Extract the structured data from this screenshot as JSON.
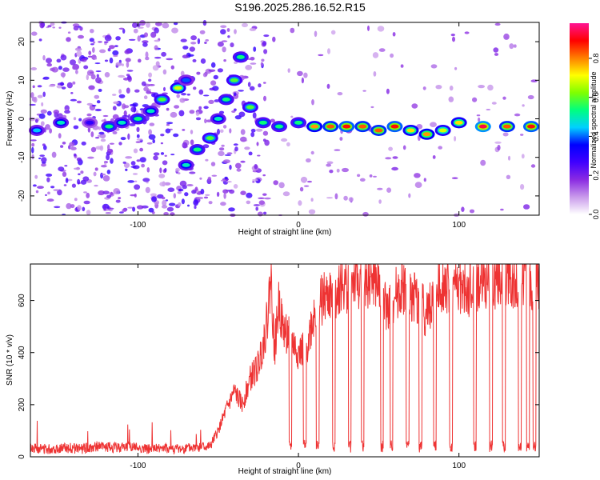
{
  "title": "S196.2025.286.16.52.R15",
  "chart_data": [
    {
      "type": "heatmap",
      "title": "S196.2025.286.16.52.R15",
      "xlabel": "Height of straight line (km)",
      "ylabel": "Frequency (Hz)",
      "xlim": [
        -167,
        150
      ],
      "ylim": [
        -25,
        25
      ],
      "xticks": [
        -100,
        0,
        100
      ],
      "yticks": [
        -20,
        -10,
        0,
        10,
        20
      ],
      "colorbar": {
        "label": "Normalized spectral amplitude",
        "range": [
          0.0,
          0.98
        ],
        "ticks": [
          0.0,
          0.2,
          0.4,
          0.6,
          0.8
        ],
        "tick_labels": [
          "0.0",
          "0.2",
          "0.4",
          "0.6",
          "0.8"
        ],
        "colors": [
          "#ffffff",
          "#c99aeb",
          "#8a2be2",
          "#4000ff",
          "#0000ff",
          "#00d0ff",
          "#00ff7f",
          "#7fff00",
          "#ffff00",
          "#ff7f00",
          "#ff0000",
          "#ff1493"
        ]
      },
      "ridge": [
        {
          "x": -163,
          "f": -3,
          "a": 0.45
        },
        {
          "x": -148,
          "f": -1,
          "a": 0.5
        },
        {
          "x": -130,
          "f": -1,
          "a": 0.3
        },
        {
          "x": -118,
          "f": -2,
          "a": 0.55
        },
        {
          "x": -110,
          "f": -1,
          "a": 0.5
        },
        {
          "x": -100,
          "f": 0,
          "a": 0.55
        },
        {
          "x": -92,
          "f": 2,
          "a": 0.5
        },
        {
          "x": -85,
          "f": 5,
          "a": 0.6
        },
        {
          "x": -75,
          "f": 8,
          "a": 0.7
        },
        {
          "x": -70,
          "f": 10,
          "a": 0.4
        },
        {
          "x": -70,
          "f": -12,
          "a": 0.5
        },
        {
          "x": -63,
          "f": -8,
          "a": 0.55
        },
        {
          "x": -55,
          "f": -5,
          "a": 0.6
        },
        {
          "x": -50,
          "f": 0,
          "a": 0.5
        },
        {
          "x": -45,
          "f": 5,
          "a": 0.55
        },
        {
          "x": -40,
          "f": 10,
          "a": 0.6
        },
        {
          "x": -36,
          "f": 16,
          "a": 0.55
        },
        {
          "x": -30,
          "f": 3,
          "a": 0.6
        },
        {
          "x": -22,
          "f": -1,
          "a": 0.55
        },
        {
          "x": -12,
          "f": -2,
          "a": 0.55
        },
        {
          "x": 0,
          "f": -1,
          "a": 0.55
        },
        {
          "x": 10,
          "f": -2,
          "a": 0.8
        },
        {
          "x": 20,
          "f": -2,
          "a": 0.85
        },
        {
          "x": 30,
          "f": -2,
          "a": 0.9
        },
        {
          "x": 40,
          "f": -2,
          "a": 0.85
        },
        {
          "x": 50,
          "f": -3,
          "a": 0.85
        },
        {
          "x": 60,
          "f": -2,
          "a": 0.9
        },
        {
          "x": 70,
          "f": -3,
          "a": 0.75
        },
        {
          "x": 80,
          "f": -4,
          "a": 0.8
        },
        {
          "x": 90,
          "f": -3,
          "a": 0.7
        },
        {
          "x": 100,
          "f": -1,
          "a": 0.75
        },
        {
          "x": 115,
          "f": -2,
          "a": 0.95
        },
        {
          "x": 130,
          "f": -2,
          "a": 0.85
        },
        {
          "x": 145,
          "f": -2,
          "a": 0.9
        }
      ]
    },
    {
      "type": "line",
      "xlabel": "Height of straight line (km)",
      "ylabel": "SNR (10 * v/v)",
      "xlim": [
        -167,
        150
      ],
      "ylim": [
        0,
        740
      ],
      "xticks": [
        -100,
        0,
        100
      ],
      "yticks": [
        0,
        200,
        400,
        600
      ],
      "color": "#ee3333",
      "series": [
        {
          "name": "SNR",
          "x": [
            -167,
            -155,
            -145,
            -135,
            -125,
            -115,
            -105,
            -95,
            -85,
            -75,
            -65,
            -55,
            -50,
            -45,
            -40,
            -35,
            -30,
            -25,
            -20,
            -17,
            -15,
            -12,
            -10,
            -5,
            0,
            5,
            10,
            15,
            20,
            25,
            30,
            35,
            40,
            45,
            50,
            55,
            60,
            65,
            70,
            75,
            80,
            85,
            90,
            95,
            100,
            105,
            110,
            115,
            120,
            125,
            130,
            135,
            140,
            145,
            150
          ],
          "y": [
            35,
            30,
            35,
            30,
            40,
            35,
            40,
            30,
            35,
            30,
            35,
            40,
            100,
            180,
            250,
            200,
            300,
            350,
            500,
            700,
            400,
            600,
            500,
            450,
            400,
            420,
            560,
            600,
            620,
            650,
            660,
            680,
            660,
            690,
            650,
            560,
            620,
            650,
            630,
            600,
            550,
            620,
            680,
            640,
            660,
            620,
            650,
            680,
            670,
            700,
            690,
            650,
            700,
            650,
            680
          ]
        }
      ],
      "dips": [
        -5,
        4,
        12,
        22,
        32,
        40,
        52,
        58,
        68,
        76,
        85,
        95,
        110,
        120,
        128,
        138,
        143,
        147
      ]
    }
  ]
}
